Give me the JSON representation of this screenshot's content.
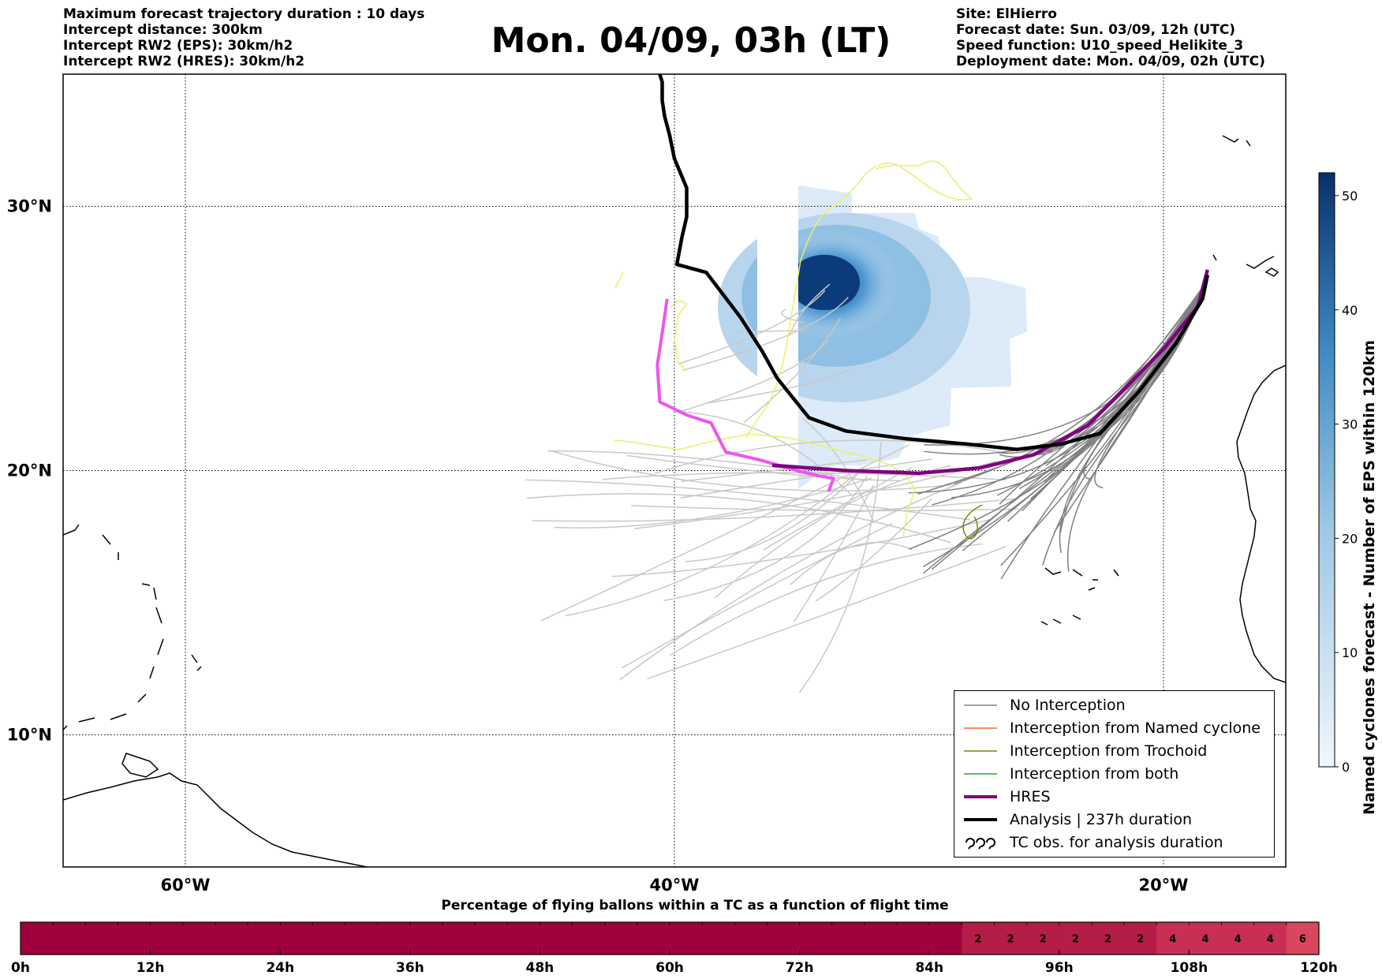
{
  "header": {
    "left_lines": [
      "Maximum forecast trajectory duration : 10 days",
      "Intercept distance: 300km",
      "Intercept RW2 (EPS):  30km/h2",
      "Intercept RW2 (HRES): 30km/h2"
    ],
    "title": "Mon. 04/09, 03h (LT)",
    "right_lines": [
      "Site: ElHierro",
      "Forecast date: Sun. 03/09, 12h (UTC)",
      "Speed function: U10_speed_Helikite_3",
      "Deployment date: Mon. 04/09, 02h (UTC)"
    ]
  },
  "colors": {
    "no_interception": "#808080",
    "eps_tracks_light": "#c8c8c8",
    "named_cyclone": "#ff6633",
    "trochoid": "#808000",
    "both": "#22aa22",
    "hres": "#800080",
    "analysis": "#000000",
    "tc_obs": "#ee55ee",
    "yellow_tracks": "#eeee66",
    "density_min": "#e6f0fa",
    "density_max": "#08306b",
    "tc_percentage": "#a0003c"
  },
  "chart_data": [
    {
      "type": "map",
      "map": {
        "lon_range": [
          -65,
          -15
        ],
        "lat_range": [
          5,
          35
        ],
        "lon_ticks": [
          -60,
          -40,
          -20
        ],
        "lon_tick_labels": [
          "60°W",
          "40°W",
          "20°W"
        ],
        "lat_ticks": [
          10,
          20,
          30
        ],
        "lat_tick_labels": [
          "10°N",
          "20°N",
          "30°N"
        ],
        "grid": true
      },
      "legend": {
        "position": "lower-right",
        "entries": [
          {
            "label": "No Interception",
            "style": "no_interception"
          },
          {
            "label": "Interception from Named cyclone",
            "style": "named_cyclone"
          },
          {
            "label": "Interception from Trochoid",
            "style": "trochoid"
          },
          {
            "label": "Interception from both",
            "style": "both"
          },
          {
            "label": "HRES",
            "style": "hres"
          },
          {
            "label": "Analysis | 237h duration",
            "style": "analysis"
          },
          {
            "label": "TC obs. for analysis duration",
            "style": "tc_obs"
          }
        ]
      },
      "hres_track": [
        [
          -18.2,
          27.6
        ],
        [
          -18.6,
          26.2
        ],
        [
          -20.0,
          24.6
        ],
        [
          -21.7,
          23.0
        ],
        [
          -23.1,
          21.7
        ],
        [
          -25.3,
          20.6
        ],
        [
          -27.5,
          20.1
        ],
        [
          -30.0,
          19.9
        ],
        [
          -33.0,
          20.0
        ],
        [
          -36.0,
          20.2
        ]
      ],
      "analysis_track": [
        [
          -18.2,
          27.4
        ],
        [
          -18.4,
          26.5
        ],
        [
          -19.5,
          24.8
        ],
        [
          -21.0,
          23.0
        ],
        [
          -22.6,
          21.4
        ],
        [
          -24.2,
          21.0
        ],
        [
          -26.0,
          20.8
        ],
        [
          -28.0,
          21.0
        ],
        [
          -30.5,
          21.2
        ],
        [
          -33.0,
          21.5
        ],
        [
          -34.5,
          22.0
        ],
        [
          -35.8,
          23.5
        ],
        [
          -36.4,
          24.5
        ],
        [
          -37.3,
          25.8
        ],
        [
          -38.7,
          27.5
        ],
        [
          -39.9,
          27.8
        ],
        [
          -39.7,
          28.8
        ],
        [
          -39.5,
          29.6
        ],
        [
          -39.5,
          30.7
        ],
        [
          -40.0,
          31.8
        ],
        [
          -40.2,
          32.7
        ],
        [
          -40.4,
          33.4
        ],
        [
          -40.5,
          34.0
        ],
        [
          -40.5,
          34.7
        ],
        [
          -40.6,
          35.0
        ]
      ],
      "tc_obs_track": [
        [
          -40.3,
          26.5
        ],
        [
          -40.5,
          25.2
        ],
        [
          -40.7,
          24.0
        ],
        [
          -40.6,
          22.6
        ],
        [
          -39.5,
          22.1
        ],
        [
          -38.5,
          21.8
        ],
        [
          -37.9,
          20.7
        ],
        [
          -36.5,
          20.4
        ],
        [
          -35.0,
          20.0
        ],
        [
          -34.1,
          19.8
        ],
        [
          -33.5,
          19.7
        ],
        [
          -33.7,
          19.2
        ]
      ],
      "density": {
        "label": "Named cyclones forecast - Number of EPS within 120km",
        "range": [
          0,
          52
        ],
        "ticks": [
          0,
          10,
          20,
          30,
          40,
          50
        ],
        "peak_value": 52,
        "peak_at": [
          -33.0,
          27.3
        ]
      }
    },
    {
      "type": "heatmap",
      "title": "Percentage of flying ballons within a TC as a function of flight time",
      "x_tick_labels": [
        "0h",
        "12h",
        "24h",
        "36h",
        "48h",
        "60h",
        "72h",
        "84h",
        "96h",
        "108h",
        "120h"
      ],
      "x_range_hours": [
        0,
        120
      ],
      "bin_width_hours": 3,
      "values": [
        0,
        0,
        0,
        0,
        0,
        0,
        0,
        0,
        0,
        0,
        0,
        0,
        0,
        0,
        0,
        0,
        0,
        0,
        0,
        0,
        0,
        0,
        0,
        0,
        0,
        0,
        0,
        0,
        0,
        2,
        2,
        2,
        2,
        2,
        2,
        4,
        4,
        4,
        4,
        6
      ],
      "cell_labels": [
        "",
        "",
        "",
        "",
        "",
        "",
        "",
        "",
        "",
        "",
        "",
        "",
        "",
        "",
        "",
        "",
        "",
        "",
        "",
        "",
        "",
        "",
        "",
        "",
        "",
        "",
        "",
        "",
        "",
        "2",
        "2",
        "2",
        "2",
        "2",
        "2",
        "4",
        "4",
        "4",
        "4",
        "6"
      ]
    }
  ]
}
